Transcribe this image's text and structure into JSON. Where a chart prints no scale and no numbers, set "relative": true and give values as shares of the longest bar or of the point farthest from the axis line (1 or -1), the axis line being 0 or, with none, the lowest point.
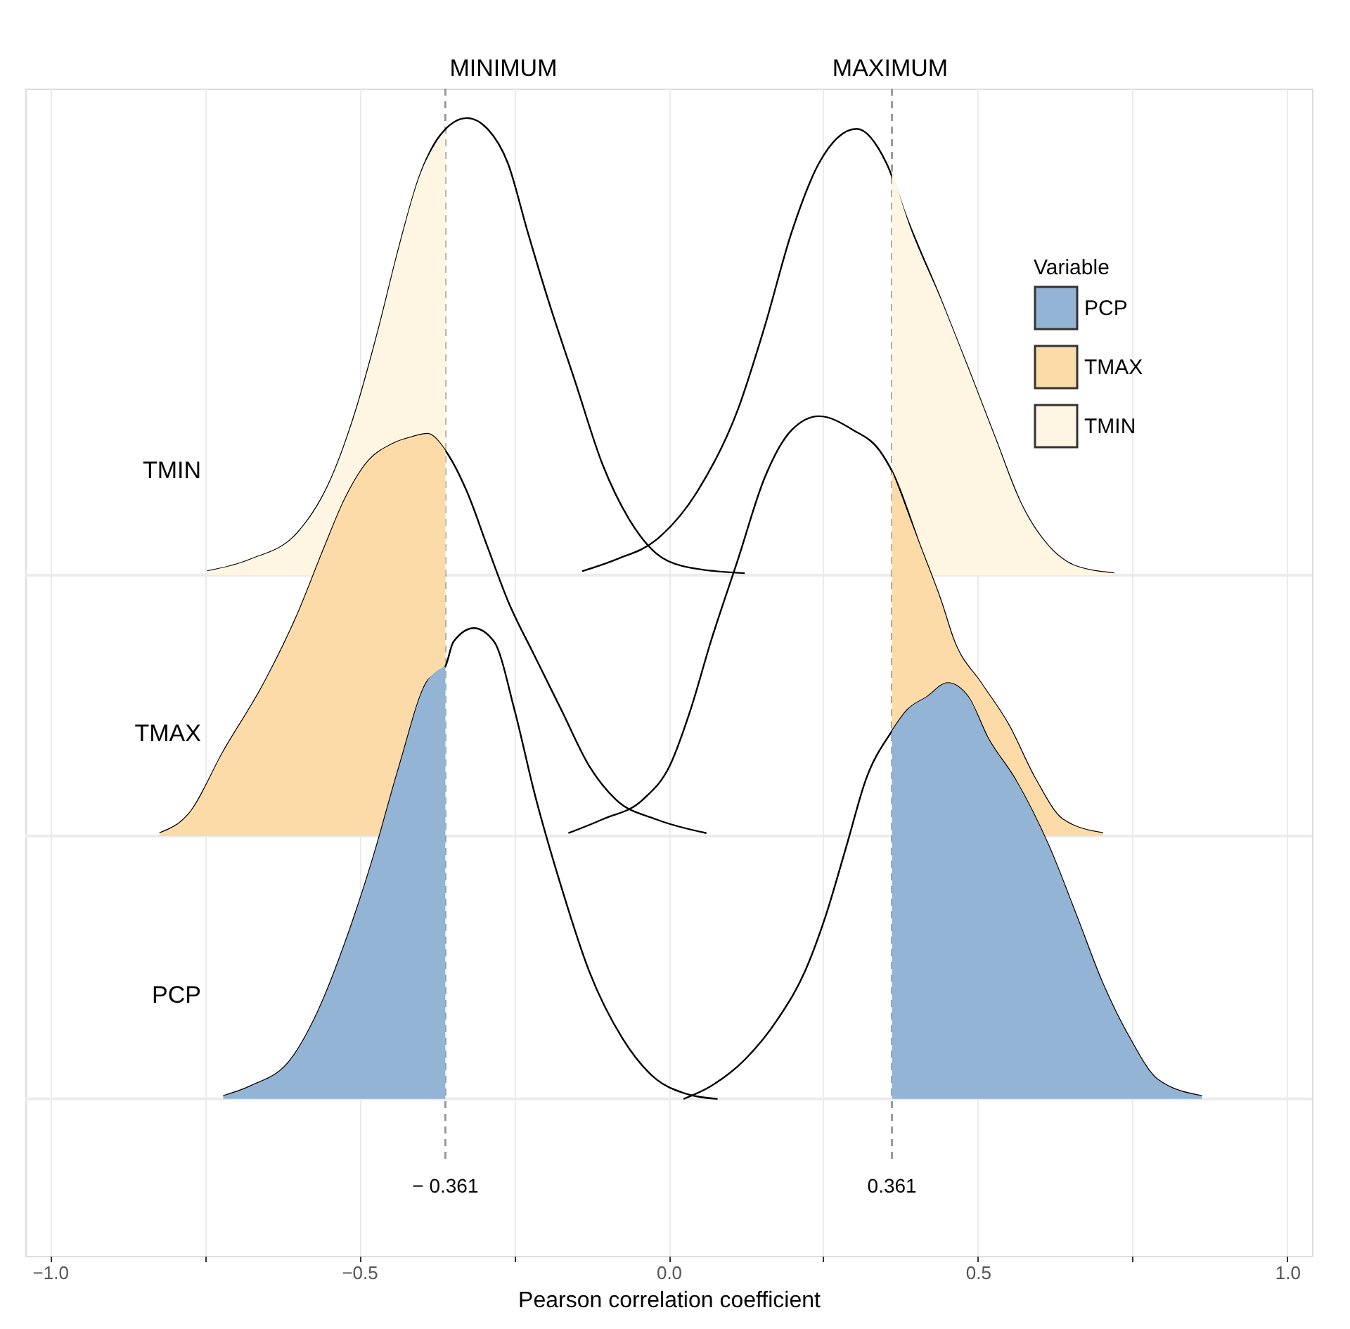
{
  "chart_data": {
    "type": "area",
    "relative": true,
    "xlabel": "Pearson correlation coefficient",
    "legend_title": "Variable",
    "legend": "top right",
    "grid": "x",
    "xlim": [
      -1.04,
      1.04
    ],
    "xticks": [
      {
        "value": -1.0,
        "label": "−1.0"
      },
      {
        "value": -0.75,
        "label": null
      },
      {
        "value": -0.5,
        "label": "−0.5"
      },
      {
        "value": -0.25,
        "label": null
      },
      {
        "value": 0.0,
        "label": "0.0"
      },
      {
        "value": 0.25,
        "label": null
      },
      {
        "value": 0.5,
        "label": "0.5"
      },
      {
        "value": 0.75,
        "label": null
      },
      {
        "value": 1.0,
        "label": "1.0"
      }
    ],
    "ref_lines": [
      {
        "axis": "y",
        "value": 0.534,
        "label": null,
        "color": "#ebebeb",
        "line_style": "solid"
      },
      {
        "axis": "y",
        "value": 0.268,
        "label": null,
        "color": "#ebebeb",
        "line_style": "solid"
      },
      {
        "axis": "y",
        "value": 0.0,
        "label": null,
        "color": "#ebebeb",
        "line_style": "solid"
      },
      {
        "axis": "x",
        "value": -0.361,
        "label": "− 0.361",
        "color": "#999999",
        "line_style": "dashed"
      },
      {
        "axis": "x",
        "value": 0.361,
        "label": "0.361",
        "color": "#999999",
        "line_style": "dashed"
      }
    ],
    "annotations": [
      "MINIMUM",
      "MAXIMUM",
      "TMIN",
      "TMAX",
      "PCP"
    ],
    "series": [
      {
        "name": "PCP",
        "color": "#94b4d6",
        "x": [
          -0.72,
          -0.676,
          -0.611,
          -0.567,
          -0.523,
          -0.479,
          -0.435,
          -0.392,
          -0.361
        ],
        "values": [
          0.003,
          0.013,
          0.04,
          0.089,
          0.159,
          0.243,
          0.34,
          0.424,
          0.441
        ]
      },
      {
        "color": "#94b4d6",
        "x": [
          0.361,
          0.385,
          0.418,
          0.451,
          0.484,
          0.516,
          0.56,
          0.615,
          0.659,
          0.702,
          0.746,
          0.79,
          0.862
        ],
        "values": [
          0.375,
          0.396,
          0.41,
          0.424,
          0.41,
          0.368,
          0.326,
          0.257,
          0.187,
          0.117,
          0.061,
          0.02,
          0.003
        ]
      },
      {
        "type": "line",
        "color": "#000000",
        "x": [
          -0.72,
          -0.676,
          -0.611,
          -0.567,
          -0.523,
          -0.479,
          -0.435,
          -0.392,
          -0.361,
          -0.348,
          -0.315,
          -0.282,
          -0.249,
          -0.217,
          -0.173,
          -0.129,
          -0.074,
          -0.02,
          0.024,
          0.079
        ],
        "values": [
          0.003,
          0.013,
          0.04,
          0.089,
          0.159,
          0.243,
          0.34,
          0.424,
          0.441,
          0.466,
          0.48,
          0.466,
          0.396,
          0.312,
          0.215,
          0.131,
          0.061,
          0.02,
          0.006,
          0.0
        ]
      },
      {
        "type": "line",
        "color": "#000000",
        "x": [
          0.024,
          0.068,
          0.123,
          0.177,
          0.221,
          0.254,
          0.287,
          0.319,
          0.361,
          0.385,
          0.418,
          0.451,
          0.484,
          0.516,
          0.56,
          0.615,
          0.659,
          0.702,
          0.746,
          0.79,
          0.862
        ],
        "values": [
          0.0,
          0.013,
          0.04,
          0.082,
          0.131,
          0.187,
          0.257,
          0.326,
          0.375,
          0.396,
          0.41,
          0.424,
          0.41,
          0.368,
          0.326,
          0.257,
          0.187,
          0.117,
          0.061,
          0.02,
          0.003
        ]
      },
      {
        "name": "TMAX",
        "color": "#fcdba8",
        "x": [
          -0.823,
          -0.775,
          -0.72,
          -0.654,
          -0.6,
          -0.556,
          -0.523,
          -0.49,
          -0.446,
          -0.414,
          -0.39,
          -0.361
        ],
        "values": [
          0.271,
          0.291,
          0.354,
          0.424,
          0.494,
          0.563,
          0.612,
          0.647,
          0.668,
          0.675,
          0.678,
          0.661
        ]
      },
      {
        "color": "#fcdba8",
        "x": [
          0.361,
          0.407,
          0.44,
          0.462,
          0.505,
          0.549,
          0.593,
          0.637,
          0.702
        ],
        "values": [
          0.64,
          0.563,
          0.508,
          0.466,
          0.424,
          0.382,
          0.326,
          0.285,
          0.271
        ]
      },
      {
        "type": "line",
        "color": "#000000",
        "x": [
          -0.823,
          -0.775,
          -0.72,
          -0.654,
          -0.6,
          -0.556,
          -0.523,
          -0.49,
          -0.446,
          -0.414,
          -0.39,
          -0.361,
          -0.326,
          -0.293,
          -0.26,
          -0.217,
          -0.173,
          -0.129,
          -0.085,
          -0.02,
          0.061
        ],
        "values": [
          0.271,
          0.291,
          0.354,
          0.424,
          0.494,
          0.563,
          0.612,
          0.647,
          0.668,
          0.675,
          0.678,
          0.661,
          0.619,
          0.563,
          0.508,
          0.452,
          0.396,
          0.34,
          0.305,
          0.285,
          0.271
        ]
      },
      {
        "type": "line",
        "color": "#000000",
        "x": [
          -0.162,
          -0.107,
          -0.042,
          0.002,
          0.035,
          0.068,
          0.112,
          0.155,
          0.199,
          0.243,
          0.298,
          0.341,
          0.361,
          0.407,
          0.44,
          0.462,
          0.505,
          0.549,
          0.593,
          0.637,
          0.702
        ],
        "values": [
          0.271,
          0.285,
          0.305,
          0.34,
          0.396,
          0.466,
          0.55,
          0.633,
          0.682,
          0.696,
          0.682,
          0.661,
          0.64,
          0.563,
          0.508,
          0.466,
          0.424,
          0.382,
          0.326,
          0.285,
          0.271
        ]
      },
      {
        "name": "TMIN",
        "color": "#fef6e2",
        "x": [
          -0.746,
          -0.676,
          -0.6,
          -0.545,
          -0.505,
          -0.468,
          -0.435,
          -0.403,
          -0.361
        ],
        "values": [
          0.538,
          0.55,
          0.577,
          0.633,
          0.703,
          0.787,
          0.87,
          0.94,
          0.987
        ]
      },
      {
        "color": "#fef6e2",
        "x": [
          0.361,
          0.385,
          0.44,
          0.484,
          0.527,
          0.571,
          0.615,
          0.659,
          0.72
        ],
        "values": [
          0.947,
          0.898,
          0.815,
          0.745,
          0.675,
          0.605,
          0.563,
          0.543,
          0.536
        ]
      },
      {
        "type": "line",
        "color": "#000000",
        "x": [
          -0.746,
          -0.676,
          -0.6,
          -0.545,
          -0.505,
          -0.468,
          -0.435,
          -0.403,
          -0.37,
          -0.326,
          -0.293,
          -0.26,
          -0.228,
          -0.195,
          -0.151,
          -0.107,
          -0.064,
          -0.02,
          0.024,
          0.123
        ],
        "values": [
          0.538,
          0.55,
          0.577,
          0.633,
          0.703,
          0.787,
          0.87,
          0.94,
          0.982,
          1.0,
          0.989,
          0.954,
          0.884,
          0.815,
          0.731,
          0.647,
          0.591,
          0.556,
          0.543,
          0.536
        ]
      },
      {
        "type": "line",
        "color": "#000000",
        "x": [
          -0.14,
          -0.085,
          -0.02,
          0.046,
          0.112,
          0.155,
          0.199,
          0.243,
          0.304,
          0.352,
          0.385,
          0.44,
          0.484,
          0.527,
          0.571,
          0.615,
          0.659,
          0.72
        ],
        "values": [
          0.538,
          0.55,
          0.57,
          0.619,
          0.703,
          0.787,
          0.884,
          0.954,
          0.989,
          0.954,
          0.898,
          0.815,
          0.745,
          0.675,
          0.605,
          0.563,
          0.543,
          0.536
        ]
      }
    ]
  }
}
